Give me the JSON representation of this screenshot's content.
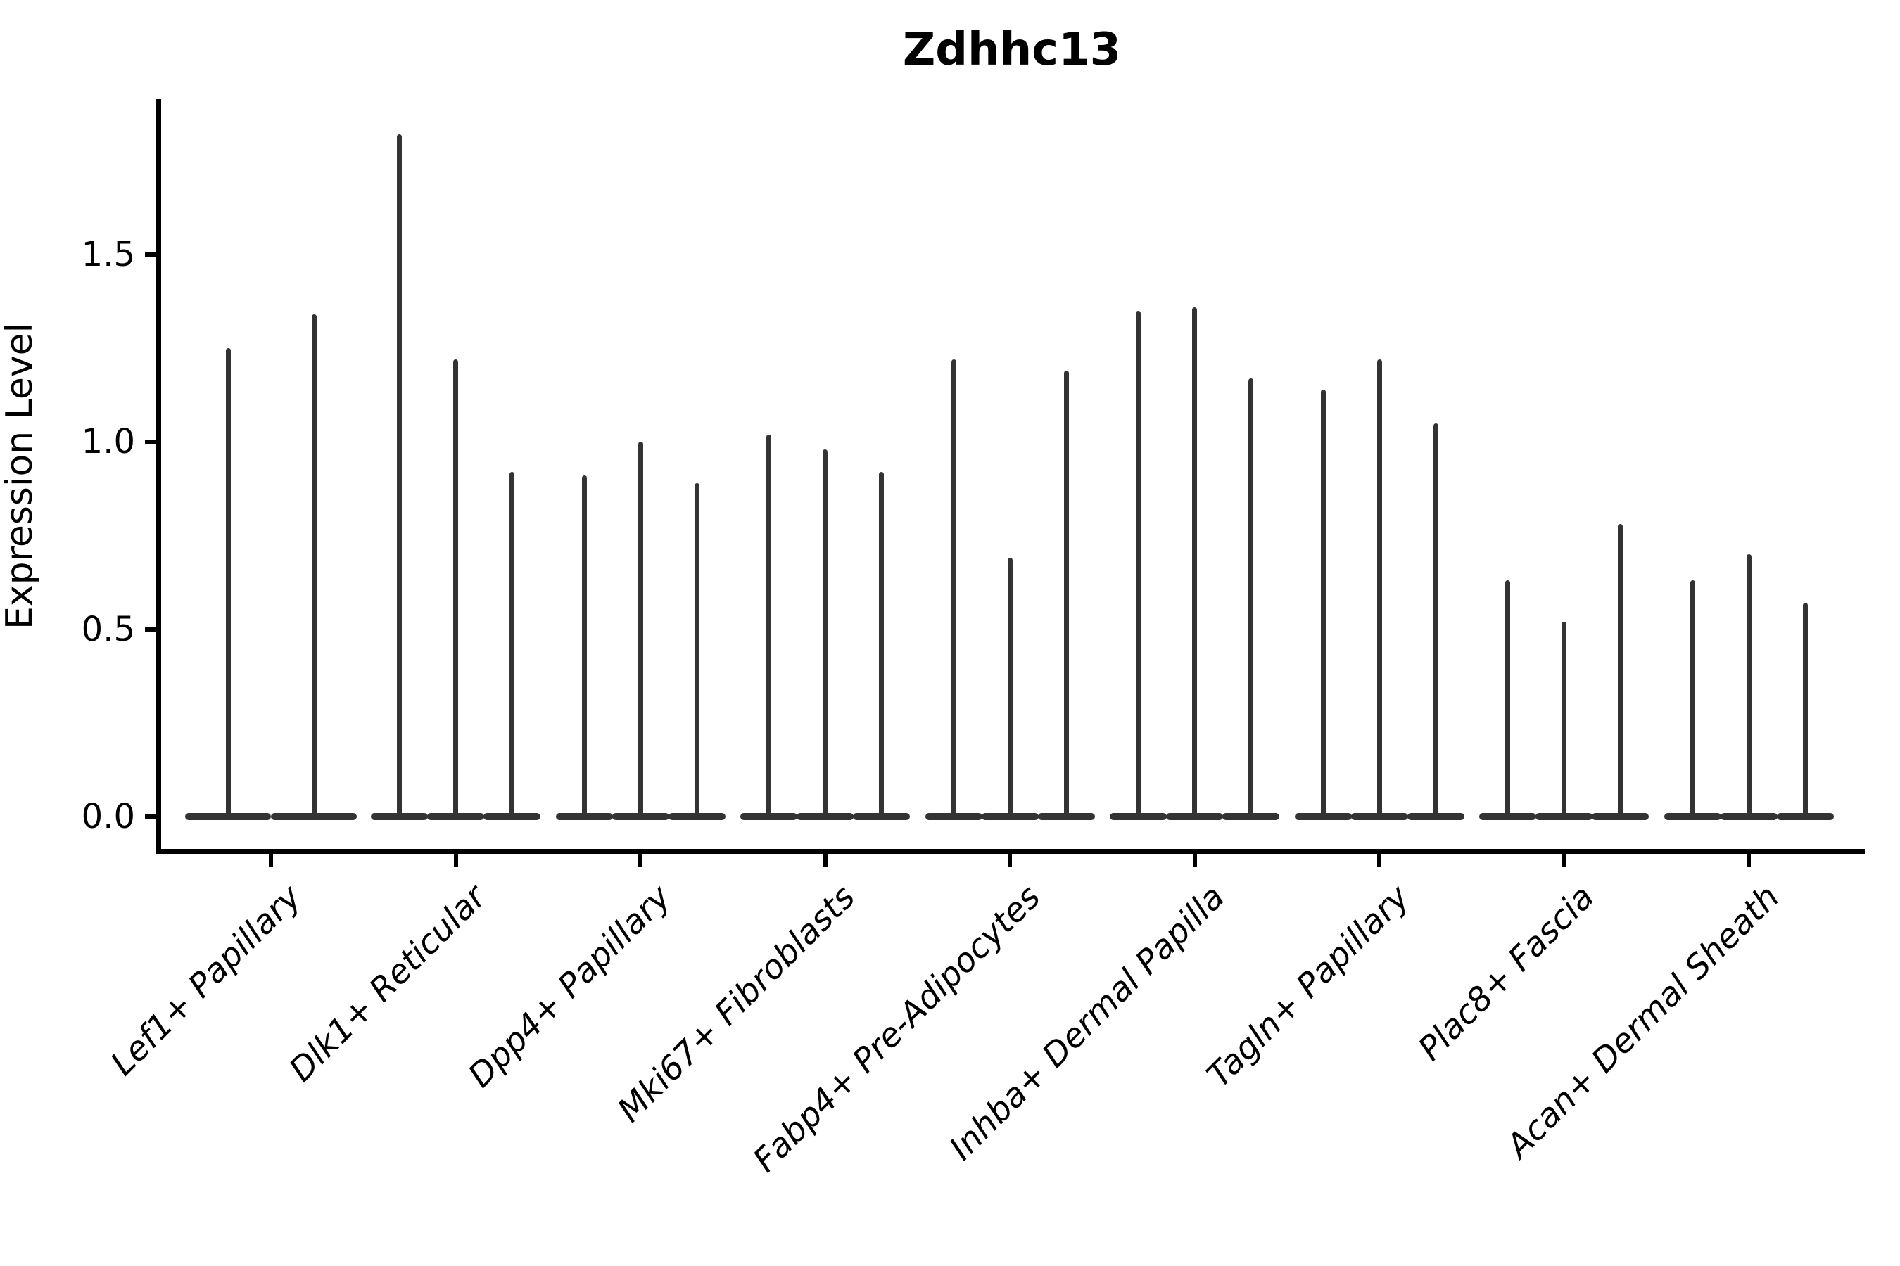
{
  "title": "Zdhhc13",
  "ylabel": "Expression Level",
  "colors": {
    "violin": "#333333",
    "axis": "#000000",
    "background": "#ffffff"
  },
  "chart_data": {
    "type": "violin",
    "title": "Zdhhc13",
    "xlabel": "",
    "ylabel": "Expression Level",
    "ylim": [
      -0.09,
      1.91
    ],
    "yticks": [
      0.0,
      0.5,
      1.0,
      1.5
    ],
    "ytick_labels": [
      "0.0",
      "0.5",
      "1.0",
      "1.5"
    ],
    "grid": false,
    "legend": "none",
    "categories": [
      "Lef1+ Papillary",
      "Dlk1+ Reticular",
      "Dpp4+ Papillary",
      "Mki67+ Fibroblasts",
      "Fabp4+ Pre-Adipocytes",
      "Inhba+ Dermal Papilla",
      "Tagln+ Papillary",
      "Plac8+ Fascia",
      "Acan+ Dermal Sheath"
    ],
    "description": "Thin needle-like violins (most cells at 0 expression); values are the max expression spike height per violin, baseline body centered at 0.",
    "groups": [
      {
        "label": "Lef1+ Papillary",
        "violin_maxima": [
          1.25,
          1.34
        ]
      },
      {
        "label": "Dlk1+ Reticular",
        "violin_maxima": [
          1.82,
          1.22,
          0.92
        ]
      },
      {
        "label": "Dpp4+ Papillary",
        "violin_maxima": [
          0.91,
          1.0,
          0.89
        ]
      },
      {
        "label": "Mki67+ Fibroblasts",
        "violin_maxima": [
          1.02,
          0.98,
          0.92
        ]
      },
      {
        "label": "Fabp4+ Pre-Adipocytes",
        "violin_maxima": [
          1.22,
          0.69,
          1.19
        ]
      },
      {
        "label": "Inhba+ Dermal Papilla",
        "violin_maxima": [
          1.35,
          1.36,
          1.17
        ]
      },
      {
        "label": "Tagln+ Papillary",
        "violin_maxima": [
          1.14,
          1.22,
          1.05
        ]
      },
      {
        "label": "Plac8+ Fascia",
        "violin_maxima": [
          0.63,
          0.52,
          0.78
        ]
      },
      {
        "label": "Acan+ Dermal Sheath",
        "violin_maxima": [
          0.63,
          0.7,
          0.57
        ]
      }
    ]
  }
}
